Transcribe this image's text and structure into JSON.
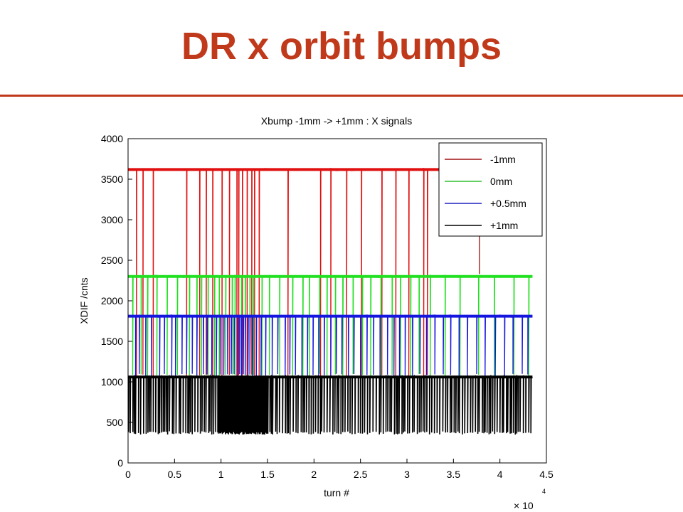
{
  "slide": {
    "title": "DR x orbit bumps"
  },
  "colors": {
    "title": "#c0391b",
    "rule": "#c0391b"
  },
  "chart_data": {
    "type": "line",
    "title": "Xbump -1mm -> +1mm : X signals",
    "xlabel": "turn #",
    "ylabel": "XDIF /cnts",
    "x_multiplier_label": "× 10",
    "x_multiplier_exponent": "4",
    "xlim": [
      0,
      4.5
    ],
    "ylim": [
      0,
      4000
    ],
    "xticks": [
      0,
      0.5,
      1,
      1.5,
      2,
      2.5,
      3,
      3.5,
      4,
      4.5
    ],
    "xtick_labels": [
      "0",
      "0.5",
      "1",
      "1.5",
      "2",
      "2.5",
      "3",
      "3.5",
      "4",
      "4.5"
    ],
    "yticks": [
      0,
      500,
      1000,
      1500,
      2000,
      2500,
      3000,
      3500,
      4000
    ],
    "ytick_labels": [
      "0",
      "500",
      "1000",
      "1500",
      "2000",
      "2500",
      "3000",
      "3500",
      "4000"
    ],
    "grid": false,
    "legend_position": "top-right",
    "series": [
      {
        "name": "-1mm",
        "color": "#e01010",
        "legend_color": "#a01010",
        "x_start": 0,
        "x_end": 3.35,
        "baseline": 3620,
        "dropout_low": 1050,
        "dropouts_x": [
          0.09,
          0.16,
          0.27,
          0.63,
          0.77,
          0.84,
          0.91,
          1.01,
          1.09,
          1.17,
          1.19,
          1.23,
          1.28,
          1.33,
          1.36,
          1.41,
          1.72,
          2.07,
          2.18,
          2.35,
          2.51,
          2.73,
          2.88,
          3.02,
          3.18,
          3.22
        ]
      },
      {
        "name": "0mm",
        "color": "#20e020",
        "legend_color": "#30c030",
        "x_start": 0,
        "x_end": 4.35,
        "baseline": 2300,
        "dropout_low": 1060,
        "dropouts_x": [
          0.05,
          0.14,
          0.21,
          0.31,
          0.42,
          0.53,
          0.66,
          0.74,
          0.79,
          0.86,
          0.93,
          0.98,
          1.05,
          1.12,
          1.15,
          1.22,
          1.26,
          1.31,
          1.35,
          1.44,
          1.52,
          1.63,
          1.77,
          1.88,
          1.95,
          2.06,
          2.14,
          2.23,
          2.31,
          2.42,
          2.52,
          2.61,
          2.72,
          2.84,
          2.93,
          3.04,
          3.13,
          3.25,
          3.41,
          3.57,
          3.77,
          3.94,
          4.15,
          4.31
        ]
      },
      {
        "name": "+0.5mm",
        "color": "#1515e0",
        "legend_color": "#2020c0",
        "x_start": 0,
        "x_end": 4.35,
        "baseline": 1810,
        "dropout_low": 1060,
        "dropouts_x": [
          0.08,
          0.12,
          0.19,
          0.25,
          0.34,
          0.39,
          0.47,
          0.51,
          0.58,
          0.63,
          0.69,
          0.74,
          0.81,
          0.85,
          0.9,
          0.95,
          0.99,
          1.03,
          1.07,
          1.11,
          1.14,
          1.18,
          1.2,
          1.22,
          1.24,
          1.26,
          1.29,
          1.31,
          1.34,
          1.38,
          1.43,
          1.48,
          1.55,
          1.61,
          1.69,
          1.74,
          1.8,
          1.87,
          1.93,
          1.99,
          2.05,
          2.11,
          2.18,
          2.24,
          2.3,
          2.37,
          2.43,
          2.5,
          2.57,
          2.64,
          2.71,
          2.79,
          2.86,
          2.92,
          2.98,
          3.06,
          3.14,
          3.21,
          3.3,
          3.39,
          3.47,
          3.56,
          3.65,
          3.75,
          3.84,
          3.95,
          4.05,
          4.14,
          4.24,
          4.3
        ]
      },
      {
        "name": "+1mm",
        "color": "#000000",
        "legend_color": "#000000",
        "x_start": 0,
        "x_end": 4.35,
        "baseline": 1060,
        "dropout_low": 350,
        "dense_region": [
          0.95,
          1.5
        ],
        "dropout_spacing": 0.022
      }
    ],
    "stray_line": {
      "series": "-1mm",
      "x": 3.78,
      "y_from": 3300,
      "y_to": 2330
    }
  }
}
